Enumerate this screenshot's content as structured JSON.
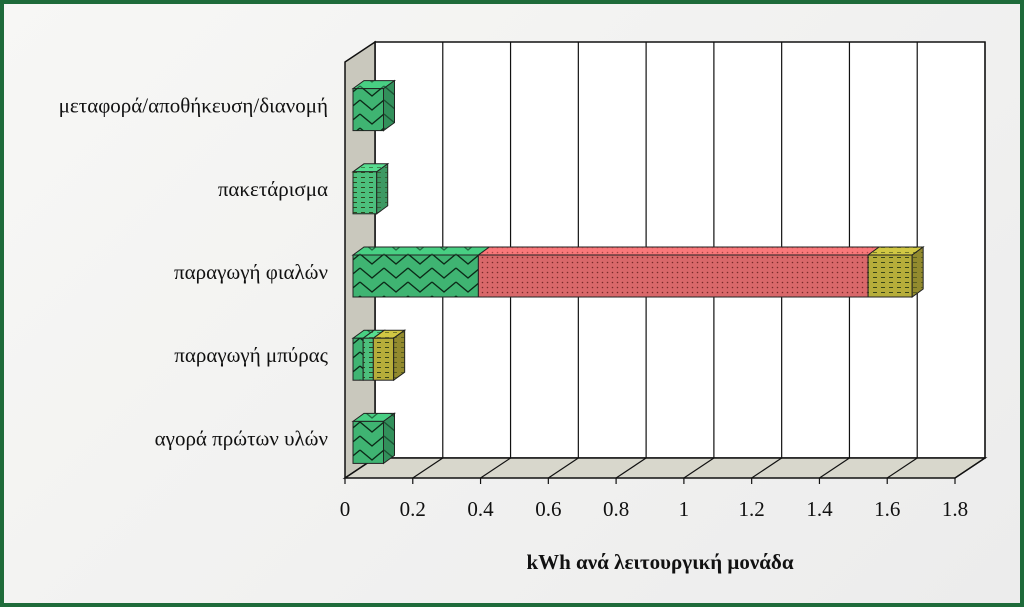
{
  "chart_data": {
    "type": "bar",
    "stacked": true,
    "orientation": "horizontal",
    "style": "3d",
    "title": "",
    "xlabel": "kWh ανά λειτουργική μονάδα",
    "ylabel": "",
    "xlim": [
      0,
      1.8
    ],
    "x_ticks": [
      "0",
      "0.2",
      "0.4",
      "0.6",
      "0.8",
      "1",
      "1.2",
      "1.4",
      "1.6",
      "1.8"
    ],
    "grid": true,
    "legend": "none",
    "categories": [
      "μεταφορά/αποθήκευση/διανομή",
      "πακετάρισμα",
      "παραγωγή φιαλών",
      "παραγωγή μπύρας",
      "αγορά πρώτων υλών"
    ],
    "series": [
      {
        "color": "#3fb472",
        "pattern": "zigzag",
        "values": [
          0.09,
          0,
          0.37,
          0.03,
          0.09
        ]
      },
      {
        "color": "#4cbf7c",
        "pattern": "dash",
        "values": [
          0,
          0.07,
          0,
          0.03,
          0
        ]
      },
      {
        "color": "#d9686a",
        "pattern": "dots",
        "values": [
          0,
          0,
          1.15,
          0,
          0
        ]
      },
      {
        "color": "#b6ad3a",
        "pattern": "dash",
        "values": [
          0,
          0,
          0.13,
          0.06,
          0
        ]
      }
    ]
  }
}
